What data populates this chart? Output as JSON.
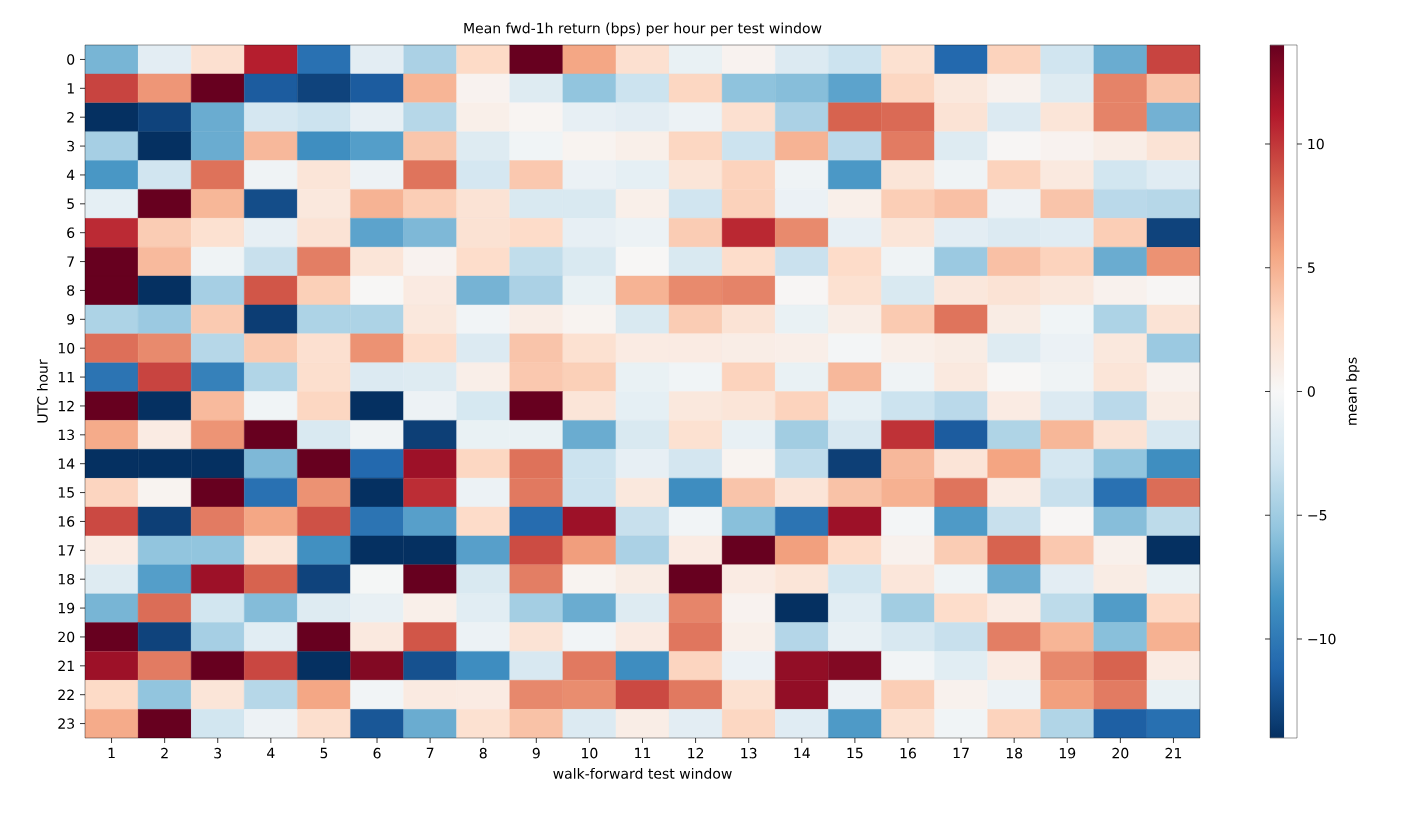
{
  "chart_data": {
    "type": "heatmap",
    "title": "Mean fwd-1h return (bps) per hour per test window",
    "xlabel": "walk-forward test window",
    "ylabel": "UTC hour",
    "clabel": "mean bps",
    "categories": [
      "1",
      "2",
      "3",
      "4",
      "5",
      "6",
      "7",
      "8",
      "9",
      "10",
      "11",
      "12",
      "13",
      "14",
      "15",
      "16",
      "17",
      "18",
      "19",
      "20",
      "21"
    ],
    "y_categories": [
      "0",
      "1",
      "2",
      "3",
      "4",
      "5",
      "6",
      "7",
      "8",
      "9",
      "10",
      "11",
      "12",
      "13",
      "14",
      "15",
      "16",
      "17",
      "18",
      "19",
      "20",
      "21",
      "22",
      "23"
    ],
    "clim": [
      -14,
      14
    ],
    "cticks": [
      {
        "value": -10,
        "label": "−10"
      },
      {
        "value": -5,
        "label": "−5"
      },
      0,
      5,
      10
    ],
    "cells": [
      [
        -6.5,
        -1.5,
        2.3,
        11,
        -10.5,
        -1.5,
        -4.5,
        2.8,
        14,
        5.5,
        2.3,
        -1,
        0.5,
        -2,
        -3,
        2.2,
        -11,
        3.2,
        -2.8,
        -7,
        9.5
      ],
      [
        9.5,
        6.2,
        14,
        -11.7,
        -13,
        -11.7,
        4.8,
        0.5,
        -1.8,
        -5.6,
        -3,
        3,
        -5.7,
        -6,
        -7.5,
        3,
        1.5,
        0.6,
        -1.8,
        7,
        4
      ],
      [
        -14,
        -13,
        -7,
        -2.5,
        -3,
        -1.2,
        -4,
        0.8,
        0.3,
        -1.2,
        -1.5,
        -0.8,
        2.3,
        -4.5,
        8.3,
        8,
        2,
        -2,
        1.8,
        7,
        -6.7
      ],
      [
        -4.7,
        -14,
        -7,
        4.6,
        -8.7,
        -7.8,
        3.9,
        -1.8,
        -0.5,
        0.4,
        0.8,
        3,
        -3,
        4.9,
        -3.8,
        7.3,
        -1.8,
        0.2,
        0.5,
        1,
        2
      ],
      [
        -8.2,
        -2.8,
        7.7,
        -0.6,
        1.8,
        -0.7,
        7.6,
        -2.5,
        3.8,
        -0.9,
        -1.3,
        1.8,
        3.2,
        -0.6,
        -8.1,
        1.8,
        -0.6,
        3.2,
        1.4,
        -2.7,
        -1.7
      ],
      [
        -1.3,
        14,
        4.7,
        -12.5,
        1.5,
        4.9,
        3.5,
        2,
        -2.2,
        -2.2,
        0.8,
        -2.8,
        3.3,
        -0.9,
        0.8,
        3.5,
        4.2,
        -0.7,
        4,
        -3.8,
        -4
      ],
      [
        10.5,
        3.6,
        2.2,
        -1.2,
        2,
        -7.5,
        -6.3,
        2.1,
        2.7,
        -1.2,
        -0.8,
        3.6,
        10.6,
        6.7,
        -1.2,
        1.8,
        -1.5,
        -2,
        -1.7,
        3.5,
        -13
      ],
      [
        14,
        4.5,
        -0.6,
        -3.2,
        7.2,
        1.8,
        0.5,
        2.6,
        -3.5,
        -2.2,
        0.1,
        -2.2,
        2.6,
        -3.1,
        2.7,
        -0.6,
        -5.2,
        4.2,
        3.2,
        -7,
        6.4
      ],
      [
        14,
        -14,
        -4.7,
        8.8,
        3.4,
        0.1,
        1.3,
        -6.6,
        -4.5,
        -1,
        4.9,
        6.7,
        7,
        0.2,
        2.2,
        -2.2,
        1.6,
        2,
        1.5,
        0.6,
        0.2
      ],
      [
        -4.4,
        -5.2,
        3.7,
        -13.3,
        -4.4,
        -4.4,
        1.5,
        -0.4,
        1,
        0.4,
        -2.2,
        3.6,
        2,
        -1,
        1,
        3.7,
        7.6,
        1.1,
        -0.5,
        -4.4,
        2
      ],
      [
        7.8,
        6.7,
        -4,
        3.7,
        2.3,
        6.4,
        2.6,
        -2,
        4,
        2.2,
        1.2,
        1.2,
        1,
        0.9,
        -0.3,
        0.8,
        1.1,
        -1.8,
        -0.9,
        1.5,
        -5.2
      ],
      [
        -10.3,
        9.5,
        -9.5,
        -4.2,
        2.4,
        -2,
        -1.8,
        0.9,
        3.8,
        3.4,
        -1,
        -0.5,
        3.2,
        -1,
        4.6,
        -0.6,
        1.4,
        0.1,
        -0.6,
        1.8,
        0.6
      ],
      [
        14,
        -14,
        4.5,
        -0.5,
        3,
        -14,
        -0.7,
        -2.4,
        14,
        1.8,
        -1.3,
        1.5,
        1.8,
        3.2,
        -1.3,
        -3,
        -3.8,
        1.2,
        -2,
        -3.8,
        1.1
      ],
      [
        5.3,
        1.2,
        6.3,
        14,
        -2.2,
        -0.6,
        -13.2,
        -1,
        -1,
        -7,
        -2.2,
        2.2,
        -1.1,
        -4.9,
        -2.3,
        10.2,
        -11.7,
        -4.3,
        4.7,
        2,
        -2.3
      ],
      [
        -14,
        -14,
        -14,
        -6.3,
        14,
        -11,
        12,
        3,
        7.7,
        -3,
        -1.2,
        -2.6,
        0.4,
        -3.6,
        -13.2,
        4.6,
        1.9,
        5.6,
        -2.5,
        -5.6,
        -8.7
      ],
      [
        3.1,
        0.4,
        14,
        -10.5,
        6.4,
        -14,
        10.4,
        -0.8,
        7.4,
        -3,
        1.5,
        -8.8,
        4,
        1.9,
        4.1,
        5,
        7.6,
        1.2,
        -3.2,
        -10.5,
        7.9
      ],
      [
        9.3,
        -13.2,
        7.3,
        5.5,
        9,
        -10.3,
        -7.7,
        2.7,
        -10.8,
        12,
        -3.2,
        -0.4,
        -5.9,
        -10.3,
        12,
        -0.3,
        -8,
        -3.2,
        0.2,
        -6,
        -3.7
      ],
      [
        1.2,
        -5.6,
        -5.6,
        1.8,
        -8.6,
        -14,
        -14,
        -7.7,
        9.2,
        5.9,
        -4.5,
        1.2,
        14,
        5.8,
        2.7,
        0.6,
        3.6,
        8.3,
        3.8,
        0.7,
        -14
      ],
      [
        -1.8,
        -7.8,
        12,
        8.3,
        -13,
        -0.2,
        14,
        -2.2,
        7.2,
        0.4,
        1.1,
        14,
        1.2,
        1.8,
        -2.7,
        1.7,
        -0.6,
        -7,
        -1.5,
        1.1,
        -1
      ],
      [
        -6.5,
        7.9,
        -2.7,
        -6.1,
        -1.8,
        -1.1,
        0.8,
        -1.6,
        -4.8,
        -7,
        -1.8,
        6.9,
        0.5,
        -14,
        -1.6,
        -4.9,
        2.6,
        1.2,
        -3.7,
        -7.9,
        2.9
      ],
      [
        14,
        -13,
        -4.7,
        -1.6,
        14,
        1.4,
        8.8,
        -0.8,
        2,
        -0.4,
        1.3,
        7.5,
        0.8,
        -4.1,
        -1.1,
        -2.3,
        -3.2,
        7.2,
        4.8,
        -5.9,
        5
      ],
      [
        12,
        7.3,
        14,
        9.4,
        -14,
        13,
        -12.3,
        -8.8,
        -2.3,
        7.4,
        -8.8,
        3.1,
        -0.9,
        12.4,
        13,
        -0.4,
        -1.6,
        1.2,
        6.8,
        8.3,
        1.2
      ],
      [
        2.8,
        -5.6,
        1.8,
        -4,
        5.5,
        -0.4,
        1.3,
        1.2,
        6.8,
        6.6,
        9.3,
        7.4,
        2.2,
        12.4,
        -0.7,
        3.5,
        0.6,
        -0.8,
        5.8,
        7.3,
        -1
      ],
      [
        5.3,
        14,
        -2.7,
        -0.7,
        2.4,
        -12,
        -7,
        2.2,
        4.1,
        -2,
        1,
        -1.5,
        3,
        -1.7,
        -8,
        2.2,
        -0.5,
        3.2,
        -4.2,
        -11.5,
        -10.6
      ]
    ]
  }
}
